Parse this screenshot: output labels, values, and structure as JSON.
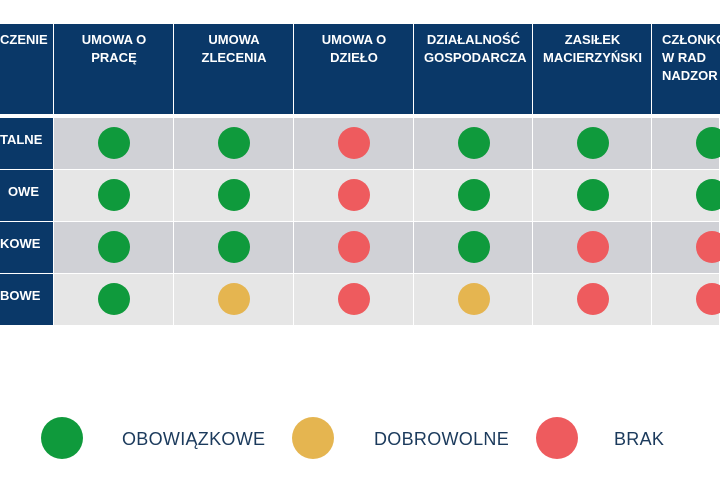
{
  "colors": {
    "obowiazkowe": "#0f9a3c",
    "dobrowolne": "#e5b550",
    "brak": "#ee5b5e",
    "header_bg": "#0a3868",
    "row_dark": "#d0d1d6",
    "row_light": "#e6e6e6"
  },
  "columns": [
    {
      "label": "CZENIE"
    },
    {
      "label": "UMOWA O PRACĘ"
    },
    {
      "label": "UMOWA ZLECENIA"
    },
    {
      "label": "UMOWA O DZIEŁO"
    },
    {
      "label": "DZIAŁALNOŚĆ GOSPODARCZA"
    },
    {
      "label": "ZASIŁEK MACIERZYŃSKI"
    },
    {
      "label": "CZŁONKO W RAD NADZOR"
    }
  ],
  "rows": [
    {
      "label": "TALNE",
      "status": [
        "obowiazkowe",
        "obowiazkowe",
        "brak",
        "obowiazkowe",
        "obowiazkowe",
        "obowiazkowe"
      ]
    },
    {
      "label": "OWE",
      "status": [
        "obowiazkowe",
        "obowiazkowe",
        "brak",
        "obowiazkowe",
        "obowiazkowe",
        "obowiazkowe"
      ]
    },
    {
      "label": "KOWE",
      "status": [
        "obowiazkowe",
        "obowiazkowe",
        "brak",
        "obowiazkowe",
        "brak",
        "brak"
      ]
    },
    {
      "label": "BOWE",
      "status": [
        "obowiazkowe",
        "dobrowolne",
        "brak",
        "dobrowolne",
        "brak",
        "brak"
      ]
    }
  ],
  "legend": [
    {
      "key": "obowiazkowe",
      "label": "OBOWIĄZKOWE"
    },
    {
      "key": "dobrowolne",
      "label": "DOBROWOLNE"
    },
    {
      "key": "brak",
      "label": "BRAK"
    }
  ]
}
